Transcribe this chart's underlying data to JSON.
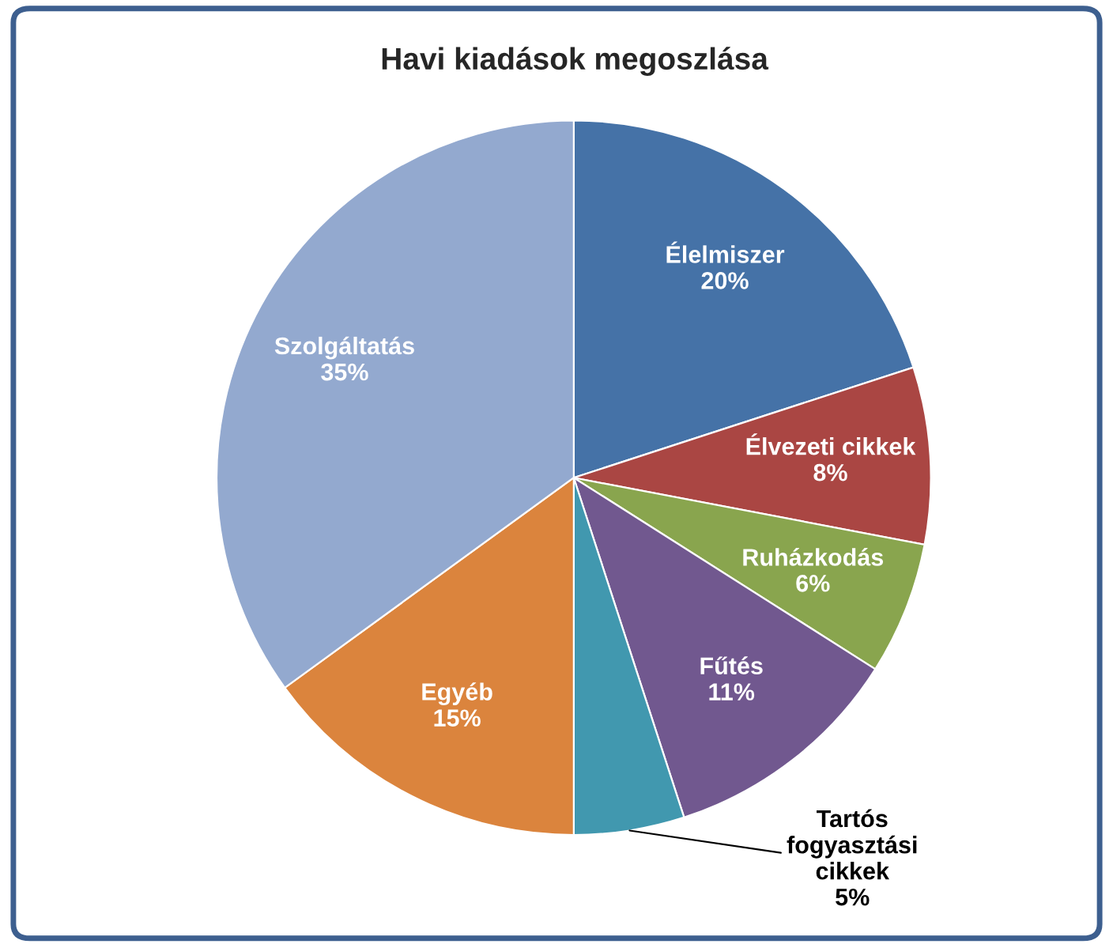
{
  "chart_data": {
    "type": "pie",
    "title": "Havi kiadások megoszlása",
    "categories": [
      "Élelmiszer",
      "Élvezeti cikkek",
      "Ruházkodás",
      "Fűtés",
      "Tartós fogyasztási cikkek",
      "Egyéb",
      "Szolgáltatás"
    ],
    "values": [
      20,
      8,
      6,
      11,
      5,
      15,
      35
    ],
    "value_labels": [
      "20%",
      "8%",
      "6%",
      "11%",
      "5%",
      "15%",
      "35%"
    ],
    "colors": [
      "#4572a7",
      "#aa4643",
      "#89a54e",
      "#71588f",
      "#4198af",
      "#db843d",
      "#93a9cf"
    ],
    "legend": false
  }
}
